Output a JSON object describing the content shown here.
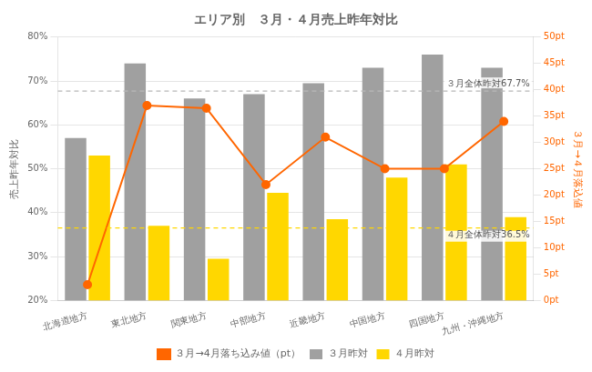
{
  "chart_data": {
    "type": "bar",
    "title": "エリア別　３月・４月売上昨年対比",
    "categories": [
      "北海道地方",
      "東北地方",
      "関東地方",
      "中部地方",
      "近畿地方",
      "中国地方",
      "四国地方",
      "九州・沖縄地方"
    ],
    "series": [
      {
        "name": "３月昨対",
        "type": "bar",
        "color": "#a0a0a0",
        "values": [
          0.57,
          0.74,
          0.66,
          0.67,
          0.695,
          0.73,
          0.76,
          0.73
        ]
      },
      {
        "name": "４月昨対",
        "type": "bar",
        "color": "#FFD700",
        "values": [
          0.53,
          0.37,
          0.295,
          0.445,
          0.385,
          0.48,
          0.51,
          0.39
        ]
      },
      {
        "name": "３月→4月落ち込み値（pt）",
        "type": "line",
        "axis": "y2",
        "color": "#FF6600",
        "marker": "o",
        "values": [
          3,
          37,
          36.5,
          22,
          31,
          25,
          25,
          34
        ]
      }
    ],
    "ylabel": "売上昨年対比",
    "y2label": "３月→４月落込値",
    "ylim": [
      0.2,
      0.8
    ],
    "yticks": [
      {
        "value": 0.2,
        "label": "20%"
      },
      {
        "value": 0.3,
        "label": "30%"
      },
      {
        "value": 0.4,
        "label": "40%"
      },
      {
        "value": 0.5,
        "label": "50%"
      },
      {
        "value": 0.6,
        "label": "60%"
      },
      {
        "value": 0.7,
        "label": "70%"
      },
      {
        "value": 0.8,
        "label": "80%"
      }
    ],
    "y2lim": [
      0,
      50
    ],
    "y2ticks": [
      {
        "value": 0,
        "label": "0pt"
      },
      {
        "value": 5,
        "label": "5pt"
      },
      {
        "value": 10,
        "label": "10pt"
      },
      {
        "value": 15,
        "label": "15pt"
      },
      {
        "value": 20,
        "label": "20pt"
      },
      {
        "value": 25,
        "label": "25pt"
      },
      {
        "value": 30,
        "label": "30pt"
      },
      {
        "value": 35,
        "label": "35pt"
      },
      {
        "value": 40,
        "label": "40pt"
      },
      {
        "value": 45,
        "label": "45pt"
      },
      {
        "value": 50,
        "label": "50pt"
      }
    ],
    "annotations": [
      {
        "text": "３月全体昨対67.7%",
        "y": 0.677,
        "color": "#b8b8b8",
        "line_style": "dashed"
      },
      {
        "text": "４月全体昨対36.5%",
        "y": 0.365,
        "color": "#FFD700",
        "line_style": "dashed"
      }
    ],
    "grid": true,
    "legend": "bottom"
  }
}
